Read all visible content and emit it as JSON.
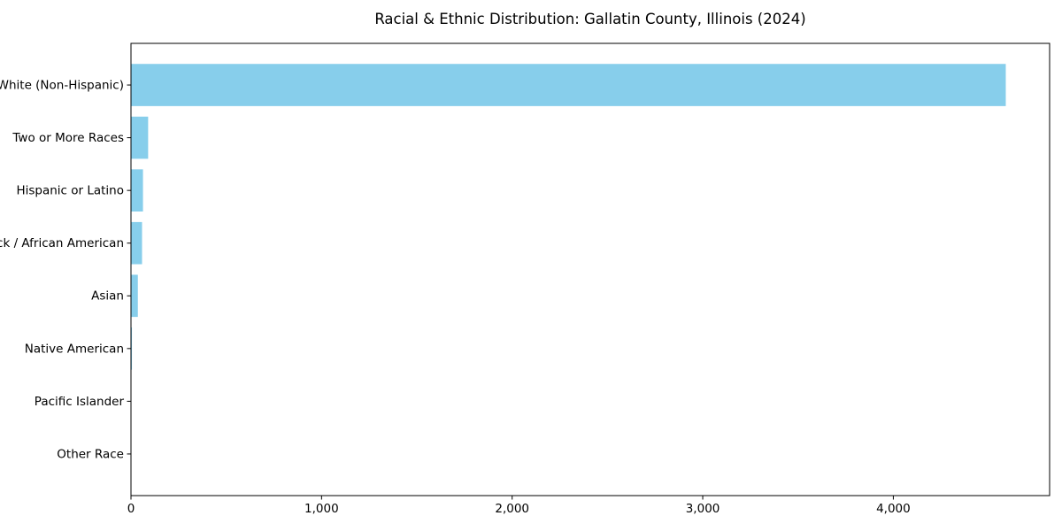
{
  "chart_data": {
    "type": "bar",
    "orientation": "horizontal",
    "title": "Racial & Ethnic Distribution: Gallatin County, Illinois (2024)",
    "categories": [
      "White (Non-Hispanic)",
      "Two or More Races",
      "Hispanic or Latino",
      "Black / African American",
      "Asian",
      "Native American",
      "Pacific Islander",
      "Other Race"
    ],
    "values": [
      4590,
      90,
      63,
      58,
      36,
      5,
      0,
      0
    ],
    "xlabel": "",
    "ylabel": "",
    "xlim": [
      0,
      4820
    ],
    "xtick_values": [
      0,
      1000,
      2000,
      3000,
      4000
    ],
    "xtick_labels": [
      "0",
      "1,000",
      "2,000",
      "3,000",
      "4,000"
    ],
    "ytick_labels": [
      "White (Non-Hispanic)",
      "Two or More Races",
      "Hispanic or Latino",
      "Black / African American",
      "Asian",
      "Native American",
      "Pacific Islander",
      "Other Race"
    ],
    "bar_color": "#87CEEB",
    "axis_color": "#000000",
    "text_color": "#000000",
    "background_color": "#FFFFFF",
    "grid": false,
    "legend": "none",
    "largest_on_top": true
  }
}
